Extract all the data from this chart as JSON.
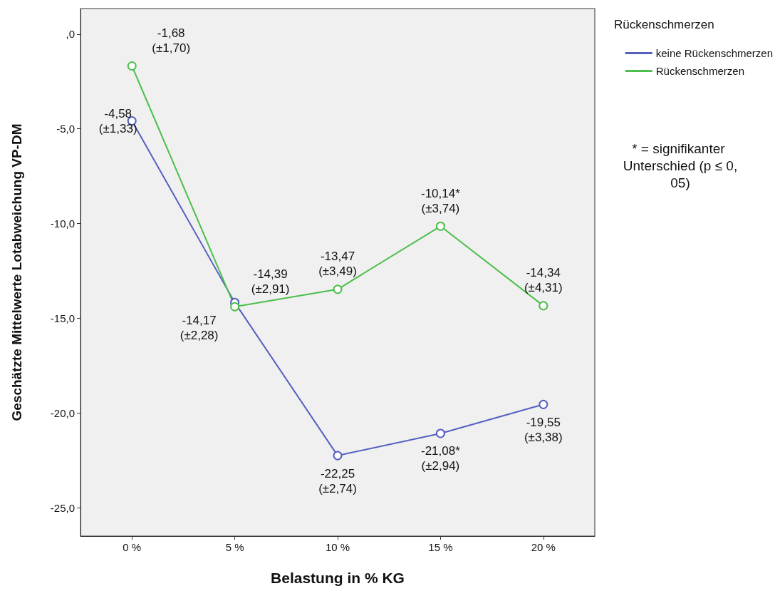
{
  "chart_data": {
    "type": "line",
    "xlabel": "Belastung in % KG",
    "ylabel": "Geschätzte Mittelwerte Lotabweichung VP-DM",
    "legend_title": "Rückenschmerzen",
    "legend": "top right",
    "marker": "circle",
    "grid": false,
    "categories": [
      "0 %",
      "5 %",
      "10 %",
      "15 %",
      "20 %"
    ],
    "ylim": [
      -26.5,
      1.35
    ],
    "yticks": [
      {
        "value": 0,
        "label": ",0"
      },
      {
        "value": -5,
        "label": "-5,0"
      },
      {
        "value": -10,
        "label": "-10,0"
      },
      {
        "value": -15,
        "label": "-15,0"
      },
      {
        "value": -20,
        "label": "-20,0"
      },
      {
        "value": -25,
        "label": "-25,0"
      }
    ],
    "series": [
      {
        "name": "keine Rückenschmerzen",
        "color": "#5560c0",
        "values": [
          -4.58,
          -14.17,
          -22.25,
          -21.08,
          -19.55
        ],
        "value_labels": [
          "-4,58\n(±1,33)",
          "-14,17\n(±2,28)",
          "-22,25\n(±2,74)",
          "-21,08*\n(±2,94)",
          "-19,55\n(±3,38)"
        ]
      },
      {
        "name": "Rückenschmerzen",
        "color": "#4cbf4c",
        "values": [
          -1.68,
          -14.39,
          -13.47,
          -10.14,
          -14.34
        ],
        "value_labels": [
          "-1,68\n(±1,70)",
          "-14,39\n(±2,91)",
          "-13,47\n(±3,49)",
          "-10,14*\n(±3,74)",
          "-14,34\n(±4,31)"
        ]
      }
    ],
    "annotations": [
      "* = signifikanter Unterschied (p ≤ 0,05)"
    ]
  }
}
